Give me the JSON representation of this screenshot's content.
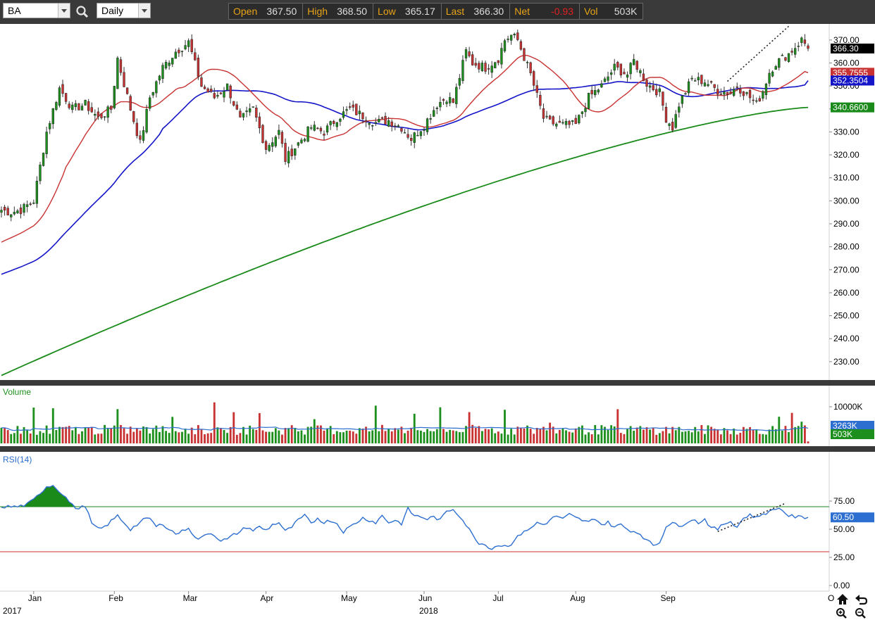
{
  "toolbar": {
    "symbol": "BA",
    "interval": "Daily",
    "search_icon": "magnifier-icon"
  },
  "quote": {
    "open_label": "Open",
    "open": "367.50",
    "high_label": "High",
    "high": "368.50",
    "low_label": "Low",
    "low": "365.17",
    "last_label": "Last",
    "last": "366.30",
    "net_label": "Net",
    "net": "-0.93",
    "vol_label": "Vol",
    "vol": "503K"
  },
  "colors": {
    "up": "#1d8f1d",
    "down": "#c83232",
    "ma_short": "#c83232",
    "ma_mid": "#1414c8",
    "ma_long": "#1a8a1a",
    "rsi": "#2d6fd0",
    "volume_ma": "#2d6fd0"
  },
  "chart_data": {
    "type": "candlestick",
    "price_ticks": [
      "370.00",
      "360.00",
      "350.00",
      "340.00",
      "330.00",
      "320.00",
      "310.00",
      "300.00",
      "290.00",
      "280.00",
      "270.00",
      "260.00",
      "250.00",
      "240.00",
      "230.00"
    ],
    "price_range": [
      222,
      377
    ],
    "price_labels": [
      {
        "value": 366.3,
        "text": "366.30",
        "color": "#000000",
        "textColor": "#ffffff"
      },
      {
        "value": 355.7555,
        "text": "355.7555",
        "color": "#c83232",
        "textColor": "#ffffff"
      },
      {
        "value": 352.3504,
        "text": "352.3504",
        "color": "#1414c8",
        "textColor": "#ffffff"
      },
      {
        "value": 340.66,
        "text": "340.6600",
        "color": "#1a8a1a",
        "textColor": "#ffffff"
      }
    ],
    "months": [
      "Jan",
      "Feb",
      "Mar",
      "Apr",
      "May",
      "Jun",
      "Jul",
      "Aug",
      "Sep"
    ],
    "years": [
      "2017",
      "2018"
    ],
    "overflow_label": "O",
    "volume": {
      "title": "Volume",
      "tick": "10000K",
      "labels": [
        {
          "text": "3263K",
          "color": "#2d6fd0"
        },
        {
          "text": "503K",
          "color": "#1d8f1d"
        }
      ]
    },
    "rsi": {
      "title": "RSI(14)",
      "ticks": [
        "75.00",
        "50.00",
        "25.00",
        "0.00"
      ],
      "overbought": 70,
      "oversold": 30,
      "last_label": "60.50",
      "last_value": 60.5
    },
    "anchors": [
      [
        0,
        296
      ],
      [
        3,
        295
      ],
      [
        6,
        296
      ],
      [
        10,
        300
      ],
      [
        14,
        330
      ],
      [
        18,
        349
      ],
      [
        22,
        340
      ],
      [
        26,
        342
      ],
      [
        30,
        336
      ],
      [
        34,
        340
      ],
      [
        36,
        362
      ],
      [
        40,
        340
      ],
      [
        43,
        325
      ],
      [
        46,
        345
      ],
      [
        50,
        358
      ],
      [
        54,
        365
      ],
      [
        58,
        369
      ],
      [
        62,
        350
      ],
      [
        66,
        345
      ],
      [
        70,
        350
      ],
      [
        74,
        335
      ],
      [
        78,
        340
      ],
      [
        82,
        323
      ],
      [
        86,
        330
      ],
      [
        88,
        318
      ],
      [
        92,
        325
      ],
      [
        96,
        332
      ],
      [
        100,
        330
      ],
      [
        104,
        336
      ],
      [
        108,
        340
      ],
      [
        112,
        337
      ],
      [
        116,
        334
      ],
      [
        120,
        335
      ],
      [
        124,
        332
      ],
      [
        127,
        327
      ],
      [
        131,
        333
      ],
      [
        135,
        342
      ],
      [
        138,
        345
      ],
      [
        140,
        343
      ],
      [
        144,
        365
      ],
      [
        146,
        360
      ],
      [
        150,
        358
      ],
      [
        154,
        362
      ],
      [
        156,
        370
      ],
      [
        158,
        372
      ],
      [
        160,
        370
      ],
      [
        164,
        355
      ],
      [
        168,
        336
      ],
      [
        170,
        334
      ],
      [
        174,
        333
      ],
      [
        178,
        333
      ],
      [
        182,
        345
      ],
      [
        186,
        350
      ],
      [
        190,
        358
      ],
      [
        194,
        355
      ],
      [
        196,
        361
      ],
      [
        198,
        356
      ],
      [
        200,
        351
      ],
      [
        204,
        347
      ],
      [
        206,
        336
      ],
      [
        208,
        332
      ],
      [
        210,
        342
      ],
      [
        214,
        353
      ],
      [
        218,
        352
      ],
      [
        222,
        348
      ],
      [
        226,
        347
      ],
      [
        228,
        350
      ],
      [
        232,
        345
      ],
      [
        234,
        342
      ],
      [
        236,
        348
      ],
      [
        238,
        356
      ],
      [
        240,
        360
      ],
      [
        244,
        364
      ],
      [
        246,
        367
      ],
      [
        248,
        370
      ],
      [
        250,
        367
      ]
    ],
    "rsi_anchors": [
      [
        0,
        70
      ],
      [
        5,
        70
      ],
      [
        8,
        72
      ],
      [
        10,
        76
      ],
      [
        12,
        82
      ],
      [
        14,
        88
      ],
      [
        16,
        89
      ],
      [
        18,
        84
      ],
      [
        20,
        78
      ],
      [
        22,
        71
      ],
      [
        24,
        68
      ],
      [
        26,
        71
      ],
      [
        28,
        55
      ],
      [
        30,
        50
      ],
      [
        32,
        52
      ],
      [
        34,
        57
      ],
      [
        36,
        62
      ],
      [
        38,
        56
      ],
      [
        40,
        50
      ],
      [
        42,
        54
      ],
      [
        44,
        58
      ],
      [
        46,
        60
      ],
      [
        48,
        52
      ],
      [
        50,
        55
      ],
      [
        52,
        50
      ],
      [
        54,
        46
      ],
      [
        56,
        48
      ],
      [
        58,
        52
      ],
      [
        60,
        42
      ],
      [
        62,
        42
      ],
      [
        64,
        47
      ],
      [
        66,
        45
      ],
      [
        68,
        40
      ],
      [
        70,
        41
      ],
      [
        72,
        45
      ],
      [
        74,
        48
      ],
      [
        76,
        52
      ],
      [
        78,
        49
      ],
      [
        80,
        52
      ],
      [
        82,
        49
      ],
      [
        84,
        54
      ],
      [
        86,
        56
      ],
      [
        88,
        48
      ],
      [
        90,
        52
      ],
      [
        92,
        58
      ],
      [
        94,
        62
      ],
      [
        96,
        55
      ],
      [
        98,
        60
      ],
      [
        100,
        56
      ],
      [
        102,
        58
      ],
      [
        104,
        55
      ],
      [
        106,
        48
      ],
      [
        108,
        52
      ],
      [
        110,
        56
      ],
      [
        112,
        60
      ],
      [
        114,
        58
      ],
      [
        116,
        56
      ],
      [
        118,
        62
      ],
      [
        120,
        56
      ],
      [
        122,
        58
      ],
      [
        124,
        55
      ],
      [
        126,
        68
      ],
      [
        128,
        62
      ],
      [
        130,
        61
      ],
      [
        132,
        59
      ],
      [
        134,
        61
      ],
      [
        136,
        58
      ],
      [
        138,
        66
      ],
      [
        140,
        68
      ],
      [
        142,
        62
      ],
      [
        144,
        54
      ],
      [
        146,
        45
      ],
      [
        148,
        38
      ],
      [
        150,
        36
      ],
      [
        152,
        33
      ],
      [
        154,
        36
      ],
      [
        156,
        35
      ],
      [
        158,
        37
      ],
      [
        160,
        43
      ],
      [
        162,
        49
      ],
      [
        164,
        50
      ],
      [
        166,
        56
      ],
      [
        168,
        54
      ],
      [
        170,
        58
      ],
      [
        172,
        62
      ],
      [
        174,
        59
      ],
      [
        176,
        63
      ],
      [
        178,
        60
      ],
      [
        180,
        58
      ],
      [
        182,
        56
      ],
      [
        184,
        60
      ],
      [
        186,
        54
      ],
      [
        188,
        56
      ],
      [
        190,
        52
      ],
      [
        192,
        54
      ],
      [
        194,
        50
      ],
      [
        196,
        48
      ],
      [
        198,
        46
      ],
      [
        200,
        40
      ],
      [
        202,
        36
      ],
      [
        204,
        38
      ],
      [
        206,
        53
      ],
      [
        208,
        56
      ],
      [
        210,
        52
      ],
      [
        212,
        56
      ],
      [
        214,
        59
      ],
      [
        216,
        56
      ],
      [
        218,
        59
      ],
      [
        220,
        51
      ],
      [
        222,
        50
      ],
      [
        224,
        55
      ],
      [
        226,
        57
      ],
      [
        228,
        52
      ],
      [
        230,
        60
      ],
      [
        232,
        63
      ],
      [
        234,
        60
      ],
      [
        236,
        64
      ],
      [
        238,
        65
      ],
      [
        240,
        69
      ],
      [
        242,
        67
      ],
      [
        244,
        62
      ],
      [
        246,
        61
      ],
      [
        248,
        60.5
      ]
    ]
  }
}
